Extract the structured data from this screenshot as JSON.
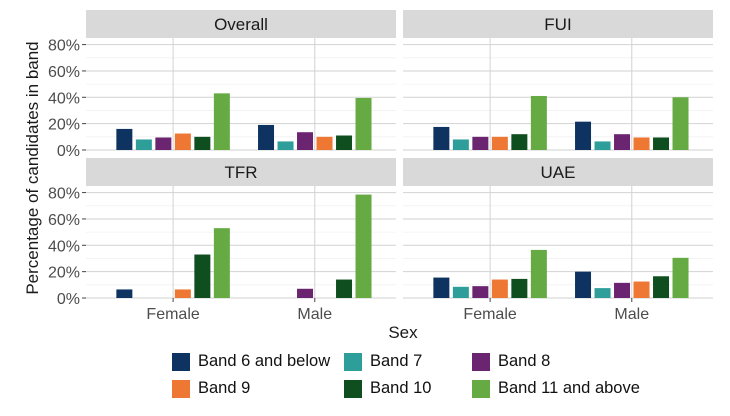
{
  "chart_data": {
    "type": "bar",
    "ylabel": "Percentage of candidates in band",
    "xlabel": "Sex",
    "categories": [
      "Female",
      "Male"
    ],
    "y_ticks": [
      "0%",
      "20%",
      "40%",
      "60%",
      "80%"
    ],
    "ylim": [
      0,
      0.85
    ],
    "grid": true,
    "legend_position": "bottom",
    "legend": [
      "Band 6 and below",
      "Band 7",
      "Band 8",
      "Band 9",
      "Band 10",
      "Band 11 and above"
    ],
    "colors": [
      "#0f3360",
      "#2e9e9a",
      "#6b2570",
      "#ee7733",
      "#0f4e1e",
      "#66aa44"
    ],
    "panels": [
      {
        "title": "Overall",
        "series": [
          {
            "name": "Band 6 and below",
            "values": [
              0.16,
              0.19
            ]
          },
          {
            "name": "Band 7",
            "values": [
              0.08,
              0.065
            ]
          },
          {
            "name": "Band 8",
            "values": [
              0.095,
              0.135
            ]
          },
          {
            "name": "Band 9",
            "values": [
              0.125,
              0.1
            ]
          },
          {
            "name": "Band 10",
            "values": [
              0.1,
              0.11
            ]
          },
          {
            "name": "Band 11 and above",
            "values": [
              0.43,
              0.395
            ]
          }
        ]
      },
      {
        "title": "FUI",
        "series": [
          {
            "name": "Band 6 and below",
            "values": [
              0.175,
              0.215
            ]
          },
          {
            "name": "Band 7",
            "values": [
              0.08,
              0.065
            ]
          },
          {
            "name": "Band 8",
            "values": [
              0.1,
              0.12
            ]
          },
          {
            "name": "Band 9",
            "values": [
              0.1,
              0.095
            ]
          },
          {
            "name": "Band 10",
            "values": [
              0.12,
              0.095
            ]
          },
          {
            "name": "Band 11 and above",
            "values": [
              0.41,
              0.4
            ]
          }
        ]
      },
      {
        "title": "TFR",
        "series": [
          {
            "name": "Band 6 and below",
            "values": [
              0.065,
              0.0
            ]
          },
          {
            "name": "Band 7",
            "values": [
              0.0,
              0.0
            ]
          },
          {
            "name": "Band 8",
            "values": [
              0.0,
              0.07
            ]
          },
          {
            "name": "Band 9",
            "values": [
              0.065,
              0.0
            ]
          },
          {
            "name": "Band 10",
            "values": [
              0.33,
              0.14
            ]
          },
          {
            "name": "Band 11 and above",
            "values": [
              0.53,
              0.785
            ]
          }
        ]
      },
      {
        "title": "UAE",
        "series": [
          {
            "name": "Band 6 and below",
            "values": [
              0.155,
              0.2
            ]
          },
          {
            "name": "Band 7",
            "values": [
              0.085,
              0.075
            ]
          },
          {
            "name": "Band 8",
            "values": [
              0.09,
              0.115
            ]
          },
          {
            "name": "Band 9",
            "values": [
              0.14,
              0.125
            ]
          },
          {
            "name": "Band 10",
            "values": [
              0.145,
              0.165
            ]
          },
          {
            "name": "Band 11 and above",
            "values": [
              0.365,
              0.305
            ]
          }
        ]
      }
    ]
  }
}
